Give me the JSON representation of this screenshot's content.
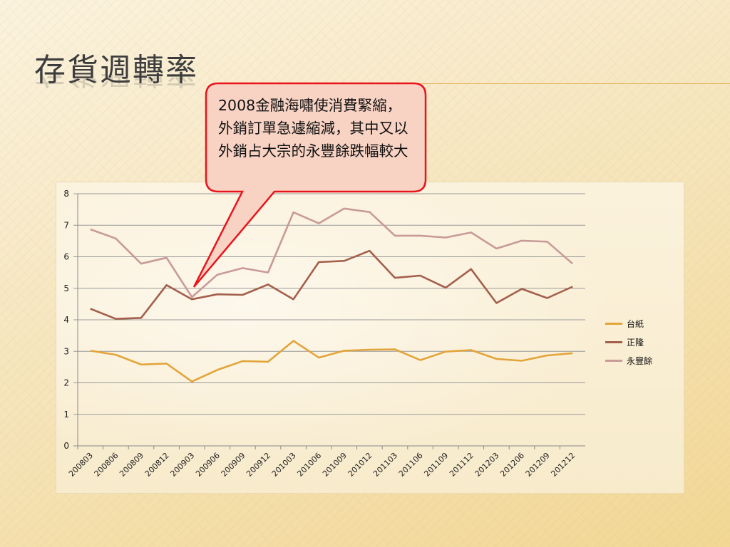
{
  "slide": {
    "title": "存貨週轉率",
    "callout_text": "2008金融海嘯使消費緊縮，外銷訂單急遽縮減，其中又以外銷占大宗的永豐餘跌幅較大"
  },
  "colors": {
    "title_rule": "#e0b35a",
    "callout_fill": "#f8d3c4",
    "callout_border": "#e8141c"
  },
  "chart_data": {
    "type": "line",
    "categories": [
      "200803",
      "200806",
      "200809",
      "200812",
      "200903",
      "200906",
      "200909",
      "200912",
      "201003",
      "201006",
      "201009",
      "201012",
      "201103",
      "201106",
      "201109",
      "201112",
      "201203",
      "201206",
      "201209",
      "201212"
    ],
    "ylim": [
      0,
      8
    ],
    "yticks": [
      0,
      1,
      2,
      3,
      4,
      5,
      6,
      7,
      8
    ],
    "grid": true,
    "legend": "right",
    "series": [
      {
        "name": "台紙",
        "color": "#e3a43a",
        "values": [
          3.02,
          2.89,
          2.58,
          2.61,
          2.04,
          2.41,
          2.69,
          2.67,
          3.33,
          2.8,
          3.02,
          3.05,
          3.06,
          2.72,
          2.99,
          3.04,
          2.76,
          2.7,
          2.87,
          2.94
        ]
      },
      {
        "name": "正隆",
        "color": "#a35f4b",
        "values": [
          4.35,
          4.03,
          4.06,
          5.1,
          4.65,
          4.81,
          4.79,
          5.12,
          4.65,
          5.83,
          5.87,
          6.19,
          5.33,
          5.4,
          5.02,
          5.61,
          4.53,
          4.98,
          4.69,
          5.05
        ]
      },
      {
        "name": "永豐餘",
        "color": "#c89a98",
        "values": [
          6.87,
          6.58,
          5.78,
          5.97,
          4.72,
          5.43,
          5.64,
          5.5,
          7.41,
          7.06,
          7.53,
          7.42,
          6.67,
          6.67,
          6.61,
          6.77,
          6.26,
          6.51,
          6.48,
          5.78
        ]
      }
    ]
  }
}
